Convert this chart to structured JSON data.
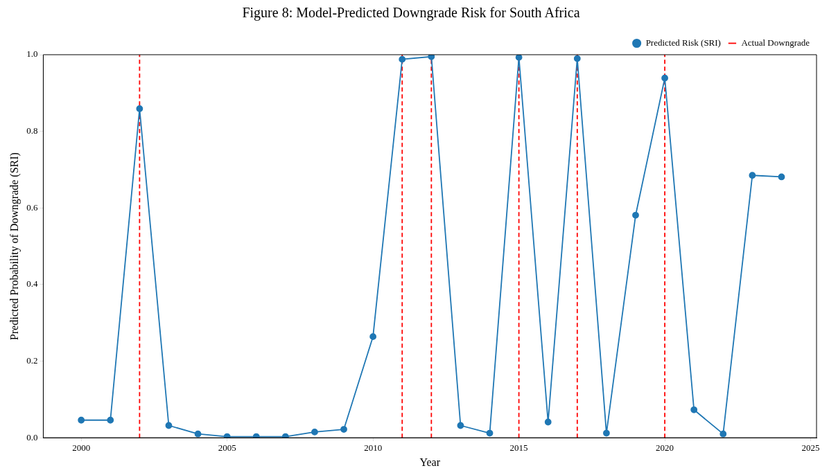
{
  "chart_data": {
    "type": "line",
    "title": "Figure 8: Model-Predicted Downgrade Risk for South Africa",
    "xlabel": "Year",
    "ylabel": "Predicted Probability of Downgrade (SRI)",
    "x": [
      2000,
      2001,
      2002,
      2003,
      2004,
      2005,
      2006,
      2007,
      2008,
      2009,
      2010,
      2011,
      2012,
      2013,
      2014,
      2015,
      2016,
      2017,
      2018,
      2019,
      2020,
      2021,
      2022,
      2023,
      2024
    ],
    "series": [
      {
        "name": "Predicted Risk (SRI)",
        "color": "#1f77b4",
        "values": [
          0.046,
          0.046,
          0.859,
          0.032,
          0.01,
          0.003,
          0.003,
          0.003,
          0.015,
          0.022,
          0.264,
          0.988,
          0.995,
          0.032,
          0.012,
          0.993,
          0.041,
          0.99,
          0.012,
          0.581,
          0.939,
          0.073,
          0.01,
          0.685,
          0.681
        ]
      }
    ],
    "marker": "circle",
    "line_style": "solid",
    "ref_lines": [
      {
        "axis": "x",
        "value": 2002,
        "label": "Actual Downgrade",
        "color": "#ff0000",
        "line_style": "dashed"
      },
      {
        "axis": "x",
        "value": 2011,
        "color": "#ff0000",
        "line_style": "dashed"
      },
      {
        "axis": "x",
        "value": 2012,
        "color": "#ff0000",
        "line_style": "dashed"
      },
      {
        "axis": "x",
        "value": 2015,
        "color": "#ff0000",
        "line_style": "dashed"
      },
      {
        "axis": "x",
        "value": 2017,
        "color": "#ff0000",
        "line_style": "dashed"
      },
      {
        "axis": "x",
        "value": 2020,
        "color": "#ff0000",
        "line_style": "dashed"
      }
    ],
    "xlim": [
      1998.7,
      2025.2
    ],
    "xticks": [
      2000,
      2005,
      2010,
      2015,
      2020,
      2025
    ],
    "ylim": [
      0,
      1
    ],
    "yticks": [
      {
        "value": 0,
        "label": "0.0"
      },
      {
        "value": 0.2,
        "label": "0.2"
      },
      {
        "value": 0.4,
        "label": "0.4"
      },
      {
        "value": 0.6,
        "label": "0.6"
      },
      {
        "value": 0.8,
        "label": "0.8"
      },
      {
        "value": 1,
        "label": "1.0"
      }
    ],
    "grid": false,
    "legend": "top right"
  }
}
